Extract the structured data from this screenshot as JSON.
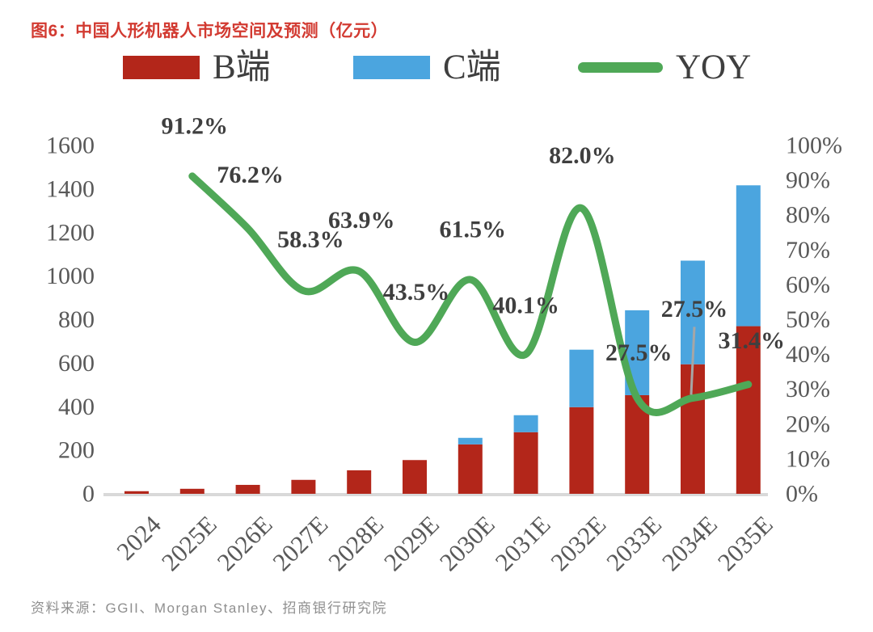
{
  "title": "图6：中国人形机器人市场空间及预测（亿元）",
  "source": "资料来源：GGII、Morgan Stanley、招商银行研究院",
  "legend": [
    {
      "label": "B端",
      "swatch": "box",
      "color": "#b3261a"
    },
    {
      "label": "C端",
      "swatch": "box",
      "color": "#4ba5df"
    },
    {
      "label": "YOY",
      "swatch": "line",
      "color": "#4fa857"
    }
  ],
  "colors": {
    "title_red": "#d23a31",
    "bar_b": "#b3261a",
    "bar_c": "#4ba5df",
    "yoy_line": "#4fa857",
    "axis_text": "#595959",
    "point_label_text": "#3f3f3f",
    "axis_line": "#d9d9d9",
    "leader_line": "#a6a6a6",
    "source_text": "#8f8f8f"
  },
  "chart_data": {
    "type": "bar",
    "subtype": "stacked-bars-with-yoy-line",
    "title": "中国人形机器人市场空间及预测（亿元）",
    "categories": [
      "2024",
      "2025E",
      "2026E",
      "2027E",
      "2028E",
      "2029E",
      "2030E",
      "2031E",
      "2032E",
      "2033E",
      "2034E",
      "2035E"
    ],
    "series": [
      {
        "name": "B端",
        "type": "bar",
        "stack": true,
        "color": "#b3261a",
        "values": [
          12,
          23,
          41,
          64,
          108,
          155,
          227,
          283,
          398,
          453,
          595,
          770
        ]
      },
      {
        "name": "C端",
        "type": "bar",
        "stack": true,
        "color": "#4ba5df",
        "values": [
          0,
          0,
          0,
          0,
          0,
          0,
          30,
          78,
          264,
          390,
          476,
          647
        ]
      },
      {
        "name": "YOY",
        "type": "line",
        "yaxis": "right",
        "color": "#4fa857",
        "values": [
          null,
          91.2,
          76.2,
          58.3,
          63.9,
          43.5,
          61.5,
          40.1,
          82.0,
          27.5,
          27.5,
          31.4
        ],
        "point_labels": [
          "",
          "91.2%",
          "76.2%",
          "58.3%",
          "63.9%",
          "43.5%",
          "61.5%",
          "40.1%",
          "82.0%",
          "27.5%",
          "27.5%",
          "31.4%"
        ]
      }
    ],
    "left_axis": {
      "min": 0,
      "max": 1600,
      "step": 200,
      "ticks": [
        "0",
        "200",
        "400",
        "600",
        "800",
        "1000",
        "1200",
        "1400",
        "1600"
      ]
    },
    "right_axis": {
      "min": 0,
      "max": 100,
      "step": 10,
      "suffix": "%",
      "ticks": [
        "0%",
        "10%",
        "20%",
        "30%",
        "40%",
        "50%",
        "60%",
        "70%",
        "80%",
        "90%",
        "100%"
      ]
    },
    "grid": false,
    "legend_position": "top"
  }
}
